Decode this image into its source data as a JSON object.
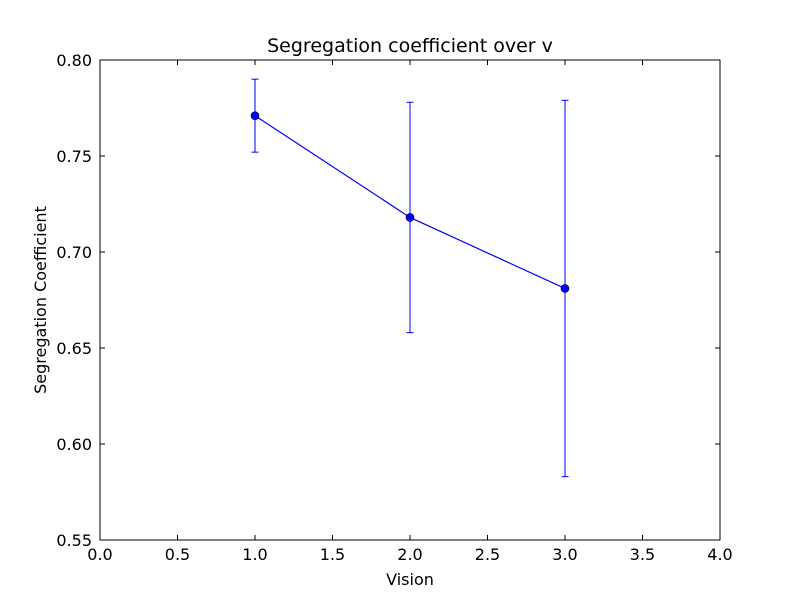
{
  "chart_data": {
    "type": "line",
    "title": "Segregation coefficient over v",
    "xlabel": "Vision",
    "ylabel": "Segregation Coefficient",
    "xlim": [
      0.0,
      4.0
    ],
    "ylim": [
      0.55,
      0.8
    ],
    "xticks": [
      "0.0",
      "0.5",
      "1.0",
      "1.5",
      "2.0",
      "2.5",
      "3.0",
      "3.5",
      "4.0"
    ],
    "yticks": [
      "0.55",
      "0.60",
      "0.65",
      "0.70",
      "0.75",
      "0.80"
    ],
    "grid": false,
    "series": [
      {
        "x": [
          1.0,
          2.0,
          3.0
        ],
        "y": [
          0.771,
          0.718,
          0.681
        ],
        "error_low": [
          0.752,
          0.658,
          0.583
        ],
        "error_high": [
          0.79,
          0.778,
          0.779
        ],
        "color": "#0000ff",
        "marker": "circle"
      }
    ]
  }
}
